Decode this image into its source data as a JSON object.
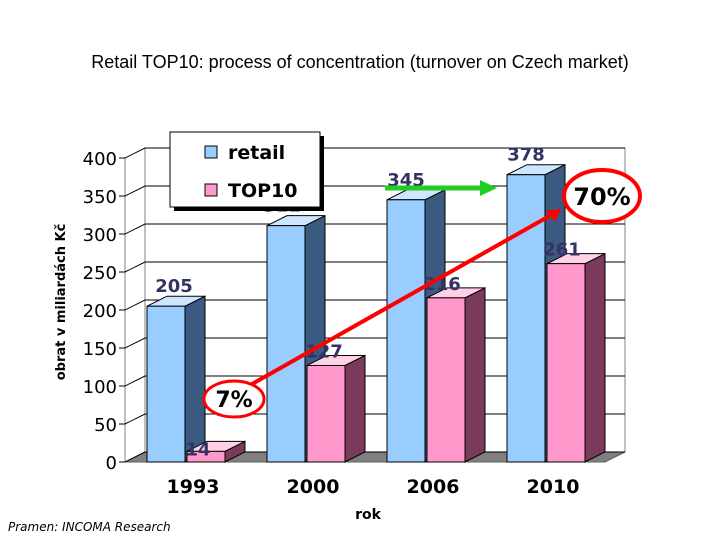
{
  "title": "Retail TOP10: process of concentration (turnover on Czech market)",
  "source": "Pramen: INCOMA Research",
  "colors": {
    "retail": "#99ccff",
    "retail_side": "#3a5a80",
    "retail_top": "#cfe6ff",
    "top10": "#ff99cc",
    "top10_side": "#7a3a5a",
    "top10_top": "#ffd0e6",
    "value_label": "#333366",
    "floor": "#7f7f7f",
    "highlight_ring": "#ff0000",
    "green_arrow": "#22cc22",
    "red_line": "#ff0000"
  },
  "chart_data": {
    "type": "bar",
    "categories": [
      "1993",
      "2000",
      "2006",
      "2010"
    ],
    "series": [
      {
        "name": "retail",
        "values": [
          205,
          311,
          345,
          378
        ]
      },
      {
        "name": "TOP10",
        "values": [
          14,
          127,
          216,
          261
        ]
      }
    ],
    "xlabel": "rok",
    "ylabel": "obrat v miliardách Kč",
    "ylim": [
      0,
      400
    ],
    "yticks": [
      "0",
      "50",
      "100",
      "150",
      "200",
      "250",
      "300",
      "350",
      "400"
    ],
    "grid": true,
    "legend_position": "top-center",
    "annotations": {
      "share_1993": "7%",
      "share_2010": "70%"
    }
  }
}
